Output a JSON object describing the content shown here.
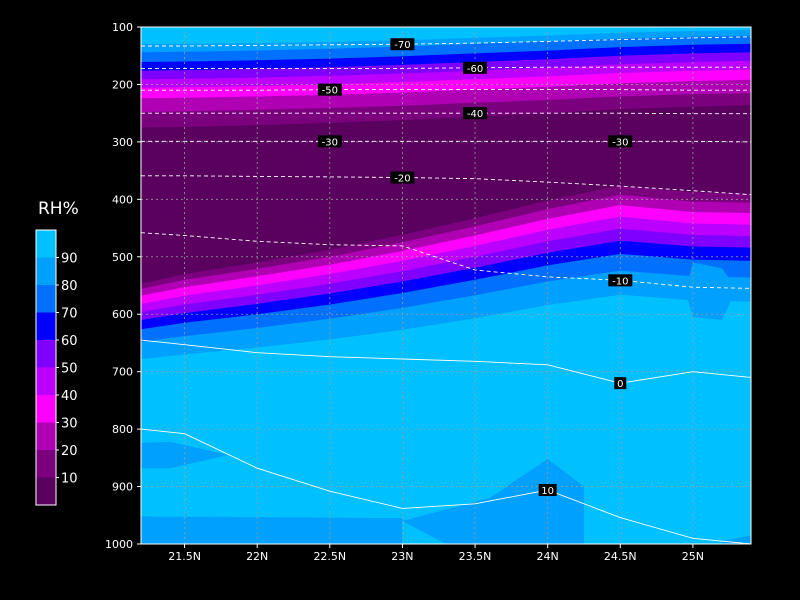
{
  "chart_data": {
    "type": "heatmap",
    "title": "",
    "xlabel": "",
    "ylabel": "",
    "colorbar_title": "RH%",
    "x_ticks": [
      "21.5N",
      "22N",
      "22.5N",
      "23N",
      "23.5N",
      "24N",
      "24.5N",
      "25N"
    ],
    "x_tick_values": [
      21.5,
      22,
      22.5,
      23,
      23.5,
      24,
      24.5,
      25
    ],
    "xlim": [
      21.2,
      25.4
    ],
    "y_ticks": [
      "100",
      "200",
      "300",
      "400",
      "500",
      "600",
      "700",
      "800",
      "900",
      "1000"
    ],
    "y_tick_values": [
      100,
      200,
      300,
      400,
      500,
      600,
      700,
      800,
      900,
      1000
    ],
    "ylim": [
      1000,
      100
    ],
    "grid": true,
    "legend_position": "left",
    "legend_levels": [
      "10",
      "20",
      "30",
      "40",
      "50",
      "60",
      "70",
      "80",
      "90"
    ],
    "level_colors": [
      "#5a005e",
      "#7a007e",
      "#b000b4",
      "#ff00ff",
      "#bb00ff",
      "#8000ff",
      "#0000ff",
      "#0070ff",
      "#00a0ff",
      "#00c0ff"
    ],
    "rh_boundaries": {
      "x": [
        21.2,
        21.5,
        22,
        22.5,
        23,
        23.5,
        24,
        24.5,
        25,
        25.4
      ],
      "upper_band": [
        [
          129,
          129,
          128,
          126,
          123,
          119,
          115,
          110,
          107,
          105
        ],
        [
          144,
          143,
          141,
          138,
          134,
          129,
          125,
          120,
          117,
          115
        ],
        [
          161,
          160,
          158,
          155,
          151,
          146,
          141,
          135,
          131,
          129
        ],
        [
          176,
          175,
          173,
          170,
          166,
          161,
          156,
          150,
          146,
          144
        ],
        [
          191,
          190,
          188,
          185,
          181,
          176,
          171,
          165,
          161,
          159
        ],
        [
          206,
          205,
          203,
          200,
          196,
          191,
          186,
          180,
          176,
          174
        ],
        [
          224,
          223,
          221,
          218,
          214,
          209,
          204,
          198,
          194,
          192
        ],
        [
          248,
          247,
          244,
          241,
          237,
          232,
          227,
          221,
          217,
          215
        ],
        [
          275,
          274,
          271,
          267,
          262,
          256,
          250,
          243,
          239,
          236
        ]
      ],
      "lower_band": [
        [
          547,
          530,
          510,
          488,
          462,
          433,
          402,
          376,
          388,
          390
        ],
        [
          556,
          540,
          521,
          500,
          475,
          447,
          417,
          392,
          404,
          406
        ],
        [
          568,
          553,
          534,
          514,
          490,
          463,
          434,
          410,
          422,
          424
        ],
        [
          582,
          568,
          550,
          530,
          507,
          481,
          453,
          430,
          442,
          444
        ],
        [
          596,
          583,
          566,
          547,
          525,
          500,
          473,
          451,
          462,
          464
        ],
        [
          610,
          598,
          582,
          564,
          543,
          519,
          493,
          472,
          482,
          484
        ],
        [
          626,
          615,
          600,
          583,
          563,
          540,
          515,
          495,
          505,
          507
        ],
        [
          648,
          638,
          624,
          608,
          589,
          567,
          543,
          524,
          534,
          536
        ],
        [
          678,
          670,
          658,
          644,
          627,
          607,
          584,
          566,
          576,
          578
        ]
      ]
    },
    "temperature_contours": [
      {
        "label": "-70",
        "x": [
          21.2,
          21.5,
          22,
          22.5,
          23,
          23.5,
          24,
          24.5,
          25,
          25.4
        ],
        "y": [
          133,
          133,
          132,
          131,
          130,
          128,
          125,
          122,
          119,
          117
        ],
        "label_x": 23
      },
      {
        "label": "-60",
        "x": [
          21.2,
          21.5,
          22,
          22.5,
          23,
          23.5,
          24,
          24.5,
          25,
          25.4
        ],
        "y": [
          172,
          172,
          172,
          172,
          172,
          171,
          170,
          170,
          170,
          170
        ],
        "label_x": 23.5
      },
      {
        "label": "-50",
        "x": [
          21.2,
          21.5,
          22,
          22.5,
          23,
          23.5,
          24,
          24.5,
          25,
          25.4
        ],
        "y": [
          210,
          210,
          210,
          209,
          209,
          209,
          209,
          209,
          210,
          210
        ],
        "label_x": 22.5
      },
      {
        "label": "-40",
        "x": [
          21.2,
          21.5,
          22,
          22.5,
          23,
          23.5,
          24,
          24.5,
          25,
          25.4
        ],
        "y": [
          250,
          250,
          250,
          250,
          250,
          250,
          250,
          250,
          251,
          251
        ],
        "label_x": 23.5
      },
      {
        "label": "-30",
        "x": [
          21.2,
          21.5,
          22,
          22.5,
          23,
          23.5,
          24,
          24.5,
          25,
          25.4
        ],
        "y": [
          299,
          299,
          299,
          299,
          299,
          299,
          299,
          299,
          299,
          300
        ],
        "label_x": 22.5,
        "label_x2": 24.5
      },
      {
        "label": "-20",
        "x": [
          21.2,
          21.5,
          22,
          22.5,
          23,
          23.5,
          24,
          24.5,
          25,
          25.4
        ],
        "y": [
          359,
          359,
          360,
          361,
          362,
          364,
          370,
          377,
          385,
          392
        ],
        "label_x": 23
      },
      {
        "label": "-10",
        "x": [
          21.2,
          21.5,
          22,
          22.5,
          23,
          23.5,
          24,
          24.5,
          25,
          25.4
        ],
        "y": [
          458,
          463,
          473,
          479,
          481,
          523,
          535,
          541,
          553,
          555
        ],
        "label_x": 24.5
      },
      {
        "label": "0",
        "x": [
          21.2,
          21.5,
          22,
          22.5,
          23,
          23.5,
          24,
          24.5,
          25,
          25.4
        ],
        "y": [
          645,
          653,
          667,
          674,
          678,
          682,
          688,
          720,
          700,
          710
        ],
        "label_x": 24.5
      },
      {
        "label": "10",
        "x": [
          21.2,
          21.5,
          22,
          22.5,
          23,
          23.5,
          24,
          24.5,
          25,
          25.4
        ],
        "y": [
          800,
          808,
          868,
          908,
          938,
          930,
          906,
          954,
          990,
          1000
        ],
        "label_x": 24
      }
    ]
  }
}
